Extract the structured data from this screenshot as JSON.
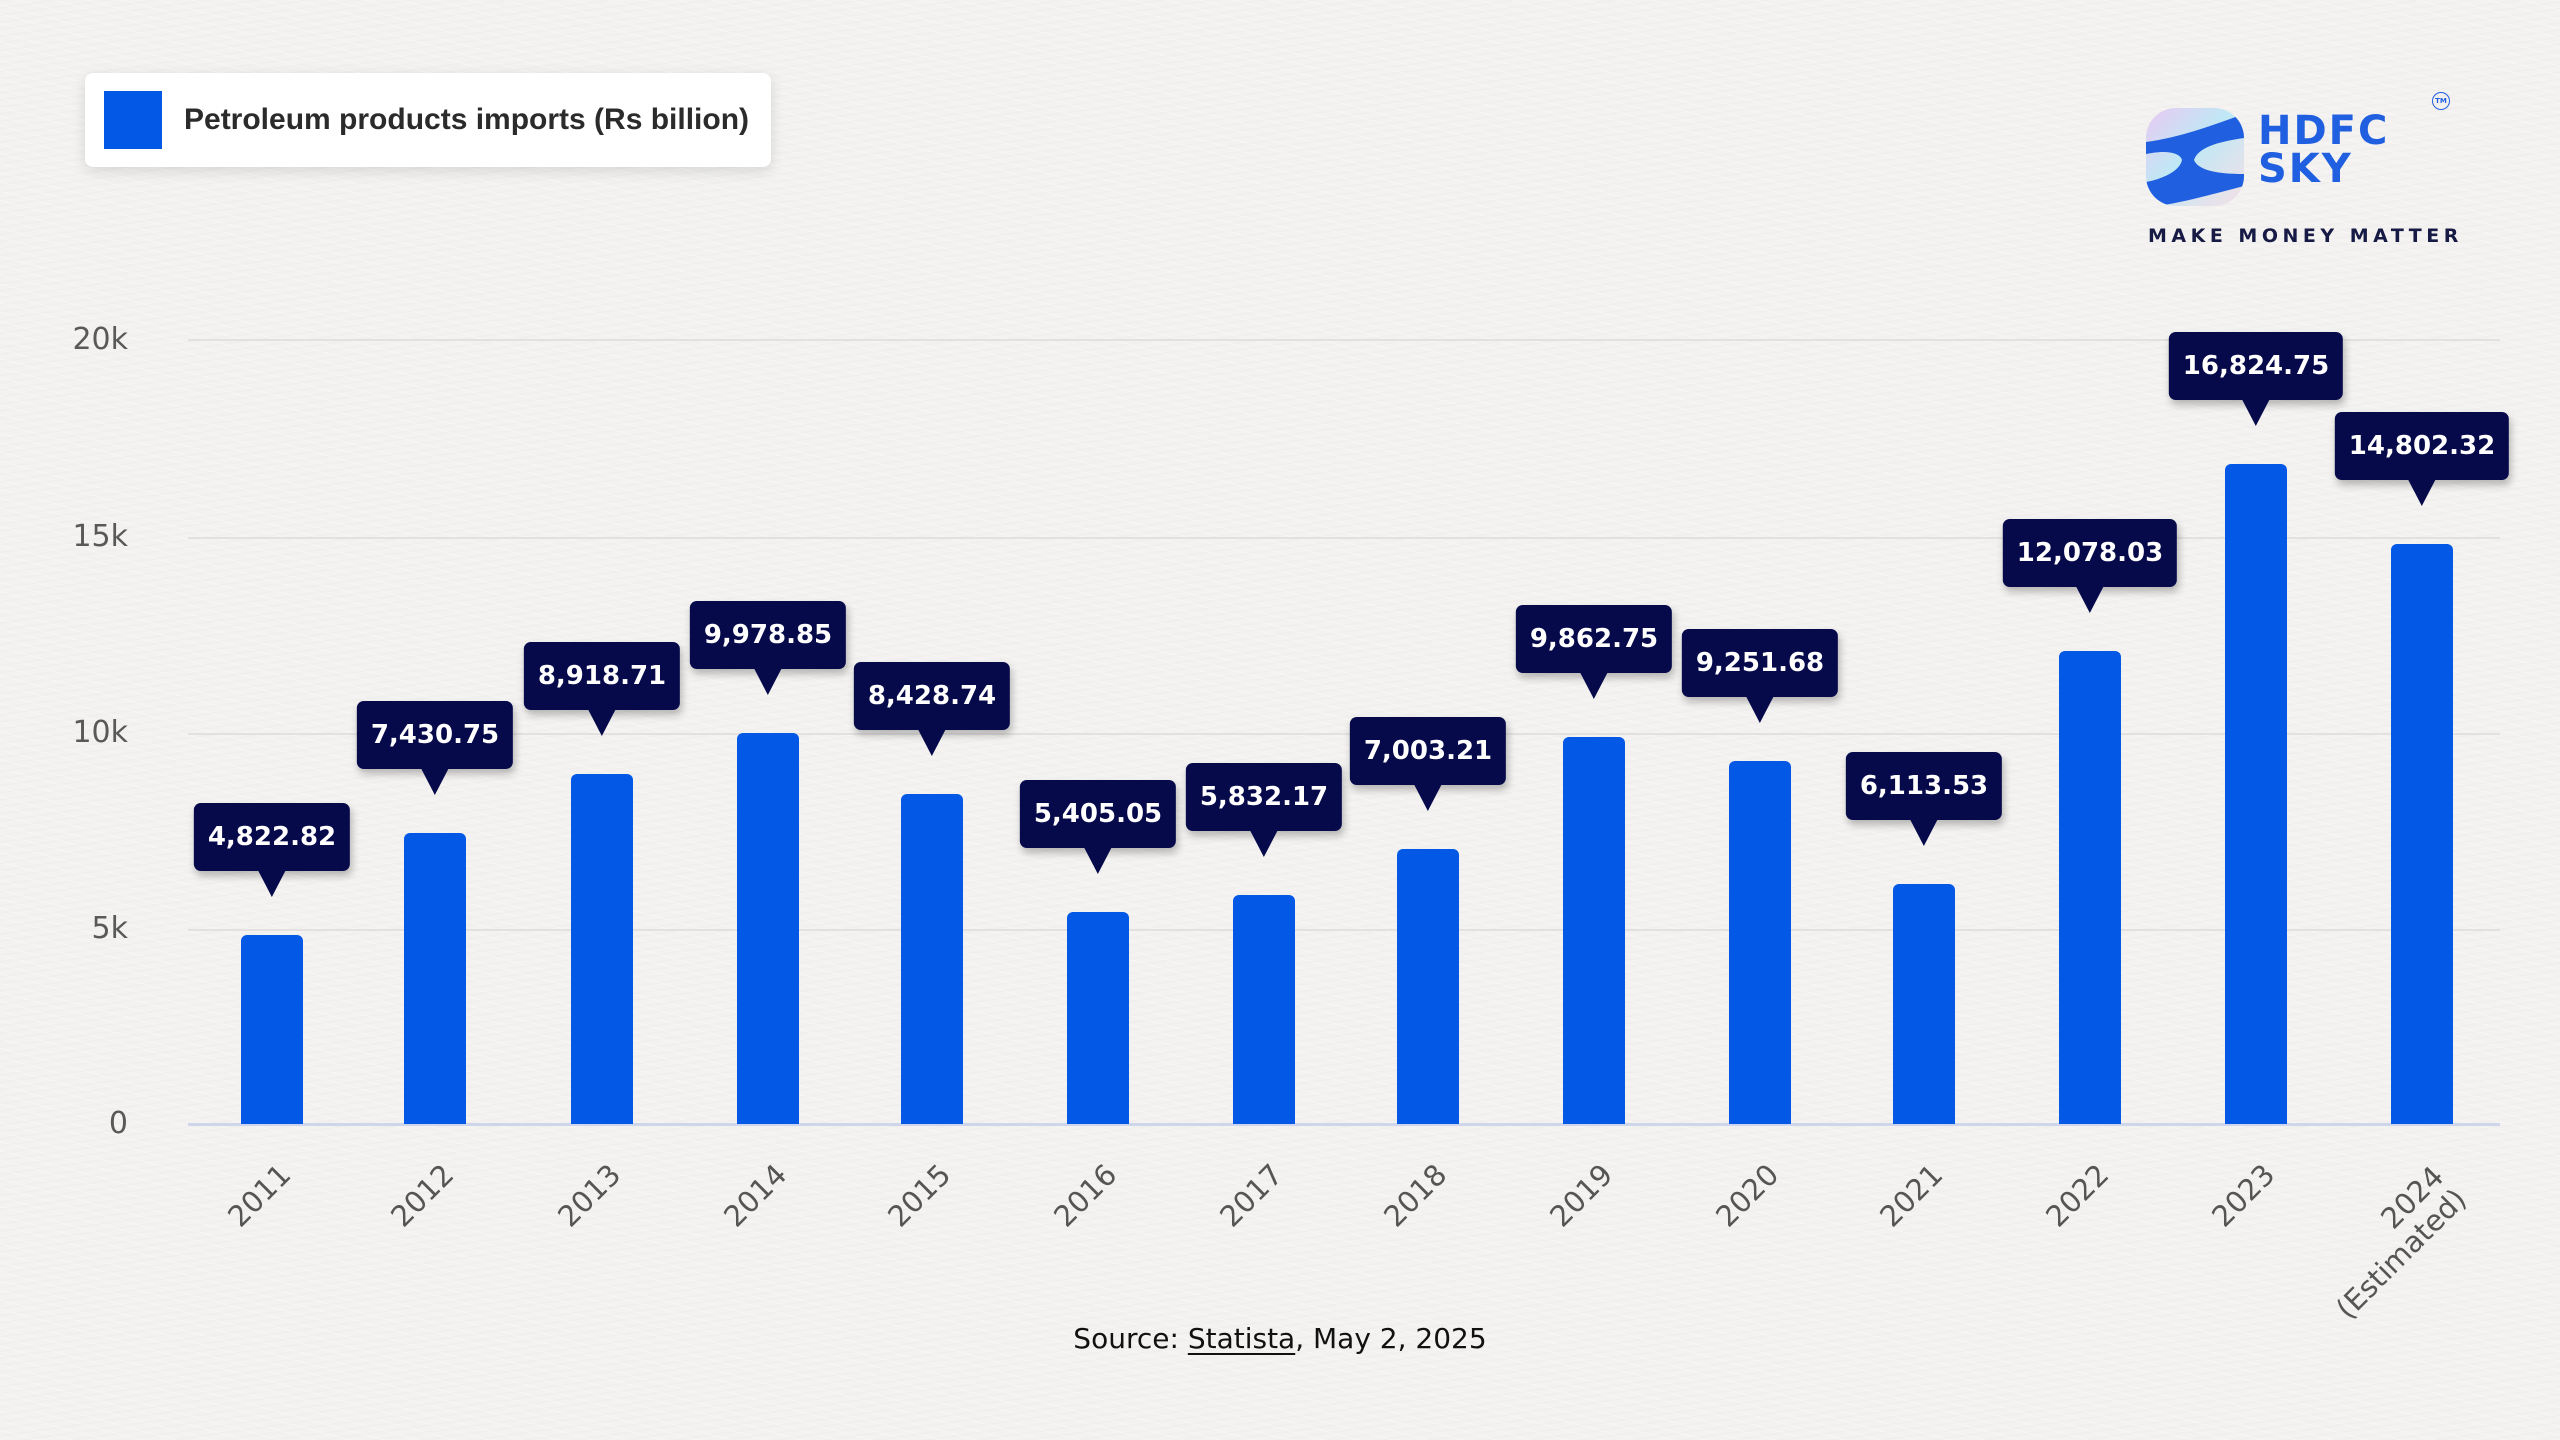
{
  "legend": {
    "label": "Petroleum products imports (Rs billion)",
    "color": "#0359e6"
  },
  "brand": {
    "name_line1": "HDFC",
    "name_line2": "SKY",
    "tm": "TM",
    "tagline": "MAKE MONEY MATTER",
    "color": "#1f5fe0"
  },
  "y_axis": {
    "ticks": [
      "20k",
      "15k",
      "10k",
      "5k",
      "0"
    ]
  },
  "x_axis": {
    "ticks": [
      "2011",
      "2012",
      "2013",
      "2014",
      "2015",
      "2016",
      "2017",
      "2018",
      "2019",
      "2020",
      "2021",
      "2022",
      "2023",
      "2024 (Estimated)"
    ]
  },
  "labels": [
    "4,822.82",
    "7,430.75",
    "8,918.71",
    "9,978.85",
    "8,428.74",
    "5,405.05",
    "5,832.17",
    "7,003.21",
    "9,862.75",
    "9,251.68",
    "6,113.53",
    "12,078.03",
    "16,824.75",
    "14,802.32"
  ],
  "source": {
    "prefix": "Source: ",
    "link": "Statista",
    "suffix": ", May 2, 2025"
  },
  "colors": {
    "bar": "#0359e6",
    "callout": "#060a4b",
    "background": "#f3f2f0"
  },
  "chart_data": {
    "type": "bar",
    "title": "",
    "categories": [
      "2011",
      "2012",
      "2013",
      "2014",
      "2015",
      "2016",
      "2017",
      "2018",
      "2019",
      "2020",
      "2021",
      "2022",
      "2023",
      "2024 (Estimated)"
    ],
    "series": [
      {
        "name": "Petroleum products imports (Rs billion)",
        "values": [
          4822.82,
          7430.75,
          8918.71,
          9978.85,
          8428.74,
          5405.05,
          5832.17,
          7003.21,
          9862.75,
          9251.68,
          6113.53,
          12078.03,
          16824.75,
          14802.32
        ]
      }
    ],
    "xlabel": "",
    "ylabel": "",
    "ylim": [
      0,
      20000
    ],
    "yticks": [
      0,
      5000,
      10000,
      15000,
      20000
    ],
    "ytick_labels": [
      "0",
      "5k",
      "10k",
      "15k",
      "20k"
    ],
    "grid": true,
    "legend_position": "top-left",
    "data_labels": true,
    "annotation": "Source: Statista, May 2, 2025"
  }
}
